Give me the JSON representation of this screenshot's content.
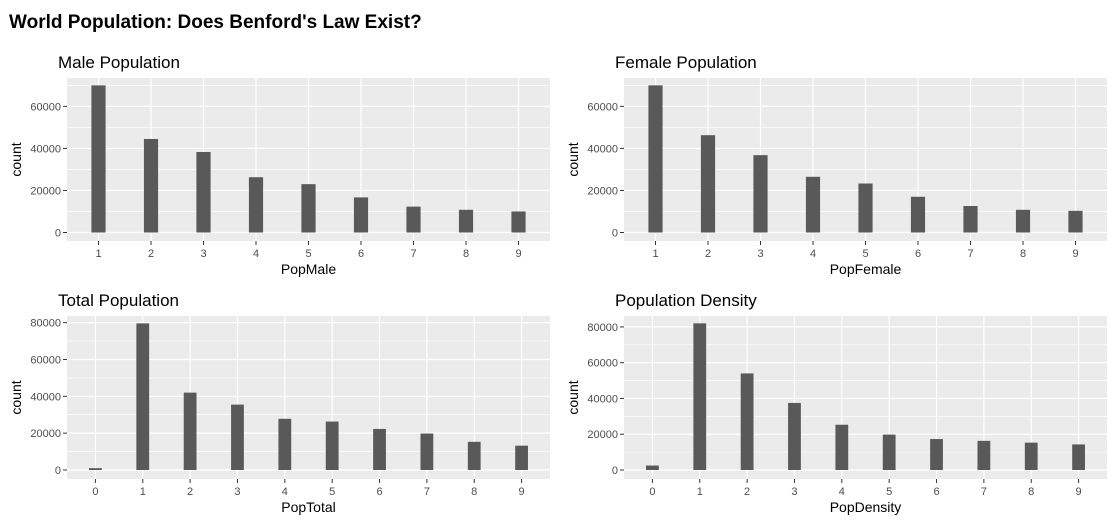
{
  "title": "World Population: Does Benford's Law Exist?",
  "colors": {
    "panel_bg": "#EBEBEB",
    "grid": "#FFFFFF",
    "bar": "#595959",
    "tick_text": "#4D4D4D",
    "axis_tick": "#333333"
  },
  "chart_data": [
    {
      "type": "bar",
      "title": "Male Population",
      "xlabel": "PopMale",
      "ylabel": "count",
      "categories": [
        "1",
        "2",
        "3",
        "4",
        "5",
        "6",
        "7",
        "8",
        "9"
      ],
      "values": [
        70000,
        44500,
        38300,
        26300,
        23000,
        16700,
        12300,
        10800,
        10000
      ],
      "yticks": [
        0,
        20000,
        40000,
        60000
      ],
      "ylim": [
        0,
        73500
      ],
      "grid": true
    },
    {
      "type": "bar",
      "title": "Female Population",
      "xlabel": "PopFemale",
      "ylabel": "count",
      "categories": [
        "1",
        "2",
        "3",
        "4",
        "5",
        "6",
        "7",
        "8",
        "9"
      ],
      "values": [
        70000,
        46300,
        36800,
        26500,
        23300,
        17000,
        12600,
        10800,
        10300
      ],
      "yticks": [
        0,
        20000,
        40000,
        60000
      ],
      "ylim": [
        0,
        73500
      ],
      "grid": true
    },
    {
      "type": "bar",
      "title": "Total Population",
      "xlabel": "PopTotal",
      "ylabel": "count",
      "categories": [
        "0",
        "1",
        "2",
        "3",
        "4",
        "5",
        "6",
        "7",
        "8",
        "9"
      ],
      "values": [
        1000,
        79600,
        42000,
        35500,
        27800,
        26300,
        22300,
        19800,
        15300,
        13200
      ],
      "yticks": [
        0,
        20000,
        40000,
        60000,
        80000
      ],
      "ylim": [
        0,
        83600
      ],
      "grid": true
    },
    {
      "type": "bar",
      "title": "Population Density",
      "xlabel": "PopDensity",
      "ylabel": "count",
      "categories": [
        "0",
        "1",
        "2",
        "3",
        "4",
        "5",
        "6",
        "7",
        "8",
        "9"
      ],
      "values": [
        2500,
        82000,
        54000,
        37500,
        25300,
        19800,
        17300,
        16300,
        15300,
        14300
      ],
      "yticks": [
        0,
        20000,
        40000,
        60000,
        80000
      ],
      "ylim": [
        0,
        86100
      ],
      "grid": true
    }
  ]
}
